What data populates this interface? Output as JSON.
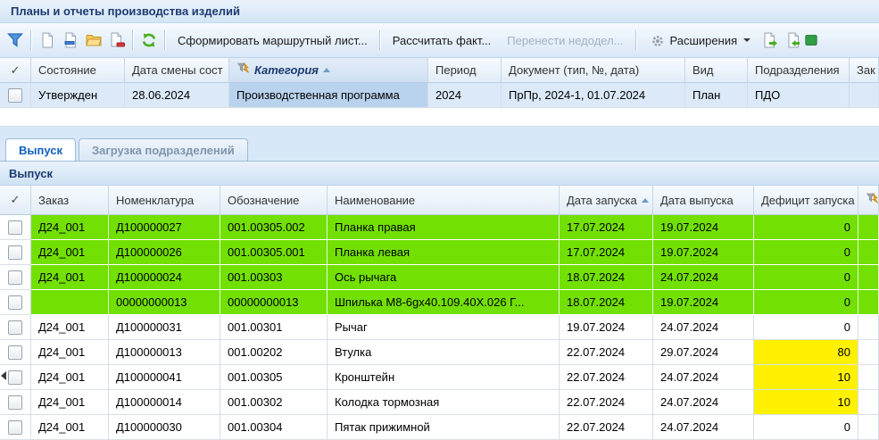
{
  "window": {
    "title": "Планы и отчеты производства изделий"
  },
  "toolbar": {
    "generate_route_sheet": "Сформировать маршрутный лист...",
    "calculate_fact": "Рассчитать факт...",
    "transfer_backlog": "Перенести недодел...",
    "extensions": "Расширения",
    "icons": [
      "filter-icon",
      "new-document-icon",
      "edit-document-icon",
      "open-folder-icon",
      "delete-document-icon",
      "refresh-icon",
      "gear-icon",
      "chevron-down-icon",
      "export-document-icon",
      "import-document-icon",
      "excel-icon"
    ]
  },
  "plans_table": {
    "columns": [
      {
        "label": "✓"
      },
      {
        "label": "Состояние"
      },
      {
        "label": "Дата смены сост"
      },
      {
        "label": "Категория",
        "sort": "asc",
        "icon": "lightning-filter-icon",
        "emphasis": true
      },
      {
        "label": "Период"
      },
      {
        "label": "Документ (тип, №, дата)"
      },
      {
        "label": "Вид"
      },
      {
        "label": "Подразделения"
      },
      {
        "label": "Зак"
      }
    ],
    "rows": [
      {
        "state": "Утвержден",
        "state_date": "28.06.2024",
        "category": "Производственная программа",
        "period": "2024",
        "document": "ПрПр, 2024-1, 01.07.2024",
        "kind": "План",
        "division": "ПДО",
        "selected": true
      }
    ]
  },
  "tabs": [
    {
      "label": "Выпуск",
      "active": true
    },
    {
      "label": "Загрузка подразделений",
      "active": false
    }
  ],
  "section": {
    "title": "Выпуск"
  },
  "output_table": {
    "columns": [
      {
        "label": "✓"
      },
      {
        "label": "Заказ"
      },
      {
        "label": "Номенклатура"
      },
      {
        "label": "Обозначение"
      },
      {
        "label": "Наименование"
      },
      {
        "label": "Дата запуска",
        "sort": "asc"
      },
      {
        "label": "Дата выпуска"
      },
      {
        "label": "Дефицит запуска",
        "align": "right"
      },
      {
        "label": "",
        "icon": "lightning-filter-icon"
      }
    ],
    "rows": [
      {
        "order": "Д24_001",
        "nomenclature": "Д100000027",
        "designation": "001.00305.002",
        "name": "Планка правая",
        "start_date": "17.07.2024",
        "release_date": "19.07.2024",
        "deficit": "0",
        "highlight": "green",
        "deficit_highlight": "green"
      },
      {
        "order": "Д24_001",
        "nomenclature": "Д100000026",
        "designation": "001.00305.001",
        "name": "Планка левая",
        "start_date": "17.07.2024",
        "release_date": "19.07.2024",
        "deficit": "0",
        "highlight": "green",
        "deficit_highlight": "green"
      },
      {
        "order": "Д24_001",
        "nomenclature": "Д100000024",
        "designation": "001.00303",
        "name": "Ось рычага",
        "start_date": "18.07.2024",
        "release_date": "24.07.2024",
        "deficit": "0",
        "highlight": "green",
        "deficit_highlight": "green"
      },
      {
        "order": "",
        "nomenclature": "00000000013",
        "designation": "00000000013",
        "name": "Шпилька М8-6gx40.109.40Х.026 Г...",
        "start_date": "18.07.2024",
        "release_date": "19.07.2024",
        "deficit": "0",
        "highlight": "green",
        "deficit_highlight": "green"
      },
      {
        "order": "Д24_001",
        "nomenclature": "Д100000031",
        "designation": "001.00301",
        "name": "Рычаг",
        "start_date": "19.07.2024",
        "release_date": "24.07.2024",
        "deficit": "0",
        "highlight": "none",
        "deficit_highlight": "none"
      },
      {
        "order": "Д24_001",
        "nomenclature": "Д100000013",
        "designation": "001.00202",
        "name": "Втулка",
        "start_date": "22.07.2024",
        "release_date": "29.07.2024",
        "deficit": "80",
        "highlight": "none",
        "deficit_highlight": "yellow"
      },
      {
        "order": "Д24_001",
        "nomenclature": "Д100000041",
        "designation": "001.00305",
        "name": "Кронштейн",
        "start_date": "22.07.2024",
        "release_date": "24.07.2024",
        "deficit": "10",
        "highlight": "none",
        "deficit_highlight": "yellow"
      },
      {
        "order": "Д24_001",
        "nomenclature": "Д100000014",
        "designation": "001.00302",
        "name": "Колодка тормозная",
        "start_date": "22.07.2024",
        "release_date": "24.07.2024",
        "deficit": "10",
        "highlight": "none",
        "deficit_highlight": "yellow"
      },
      {
        "order": "Д24_001",
        "nomenclature": "Д100000030",
        "designation": "001.00304",
        "name": "Пятак прижимной",
        "start_date": "22.07.2024",
        "release_date": "24.07.2024",
        "deficit": "0",
        "highlight": "none",
        "deficit_highlight": "none"
      }
    ]
  },
  "colors": {
    "green_highlight": "#73e004",
    "yellow_highlight": "#fff100",
    "selection_row": "#dce9f8",
    "focused_cell": "#b9d3ee",
    "accent": "#1061c0"
  }
}
